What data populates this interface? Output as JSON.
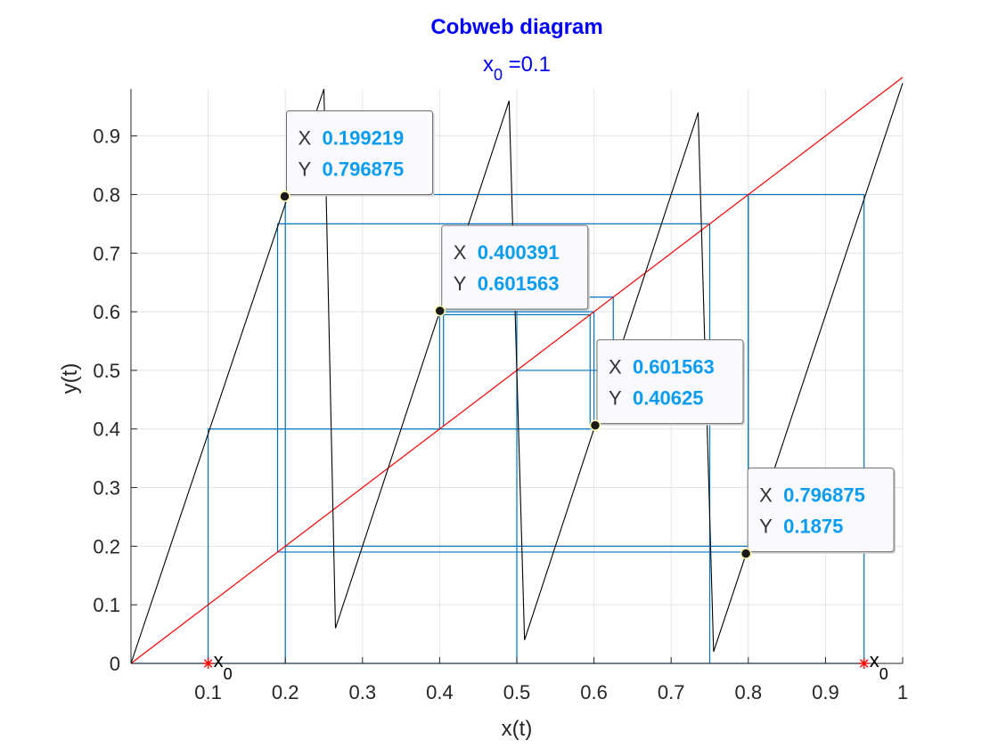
{
  "chart_data": {
    "type": "line",
    "title": "Cobweb diagram",
    "subtitle_var": "x",
    "subtitle_sub": "0",
    "subtitle_rest": " =0.1",
    "xlabel": "x(t)",
    "ylabel": "y(t)",
    "xlim": [
      0,
      1
    ],
    "ylim": [
      0,
      0.98
    ],
    "xticks": [
      0.1,
      0.2,
      0.3,
      0.4,
      0.5,
      0.6,
      0.7,
      0.8,
      0.9,
      1
    ],
    "xtick_labels": [
      "0.1",
      "0.2",
      "0.3",
      "0.4",
      "0.5",
      "0.6",
      "0.7",
      "0.8",
      "0.9",
      "1"
    ],
    "yticks": [
      0,
      0.1,
      0.2,
      0.3,
      0.4,
      0.5,
      0.6,
      0.7,
      0.8,
      0.9
    ],
    "ytick_labels": [
      "0",
      "0.1",
      "0.2",
      "0.3",
      "0.4",
      "0.5",
      "0.6",
      "0.7",
      "0.8",
      "0.9"
    ],
    "grid": true,
    "colors": {
      "map": "#000000",
      "diagonal": "#ff0000",
      "cobweb": "#0072bd",
      "marker": "#ff0000",
      "tip_value": "#0a9cf0"
    },
    "map_curve": [
      [
        0,
        0
      ],
      [
        0.25,
        0.98
      ],
      [
        0.265,
        0.06
      ],
      [
        0.49,
        0.96
      ],
      [
        0.51,
        0.04
      ],
      [
        0.735,
        0.94
      ],
      [
        0.755,
        0.02
      ],
      [
        1,
        0.99
      ]
    ],
    "diagonal": [
      [
        0,
        0
      ],
      [
        1,
        1
      ]
    ],
    "cobweb": [
      [
        [
          0.1,
          0
        ],
        [
          0.1,
          0.4
        ],
        [
          0.4,
          0.4
        ],
        [
          0.4,
          0.6
        ],
        [
          0.6,
          0.6
        ],
        [
          0.6,
          0.4
        ],
        [
          0.4,
          0.4
        ]
      ],
      [
        [
          0.2,
          0
        ],
        [
          0.2,
          0.8
        ],
        [
          0.8,
          0.8
        ],
        [
          0.8,
          0.2
        ],
        [
          0.2,
          0.2
        ],
        [
          0.2,
          0.8
        ]
      ],
      [
        [
          0.19,
          0.19
        ],
        [
          0.19,
          0.75
        ],
        [
          0.75,
          0.75
        ],
        [
          0.75,
          0.0
        ]
      ],
      [
        [
          0.0,
          0.0
        ],
        [
          0.95,
          0.0
        ],
        [
          0.95,
          0.8
        ],
        [
          0.8,
          0.8
        ],
        [
          0.8,
          0.19
        ],
        [
          0.19,
          0.19
        ]
      ],
      [
        [
          0.5,
          0.0
        ],
        [
          0.5,
          0.5
        ],
        [
          0.5,
          0.625
        ],
        [
          0.625,
          0.625
        ],
        [
          0.625,
          0.5
        ],
        [
          0.5,
          0.5
        ]
      ],
      [
        [
          0.405,
          0.405
        ],
        [
          0.405,
          0.595
        ],
        [
          0.595,
          0.595
        ],
        [
          0.595,
          0.405
        ]
      ]
    ],
    "x0_markers": [
      {
        "x": 0.1,
        "y": 0,
        "label_main": "x",
        "label_sub": "0"
      },
      {
        "x": 0.95,
        "y": 0,
        "label_main": "x",
        "label_sub": "0"
      }
    ],
    "datatips": [
      {
        "x": 0.199219,
        "y": 0.796875,
        "x_text": "0.199219",
        "y_text": "0.796875",
        "key_x": "X",
        "key_y": "Y"
      },
      {
        "x": 0.400391,
        "y": 0.601563,
        "x_text": "0.400391",
        "y_text": "0.601563",
        "key_x": "X",
        "key_y": "Y"
      },
      {
        "x": 0.601563,
        "y": 0.40625,
        "x_text": "0.601563",
        "y_text": "0.40625",
        "key_x": "X",
        "key_y": "Y"
      },
      {
        "x": 0.796875,
        "y": 0.1875,
        "x_text": "0.796875",
        "y_text": "0.1875",
        "key_x": "X",
        "key_y": "Y"
      }
    ]
  }
}
